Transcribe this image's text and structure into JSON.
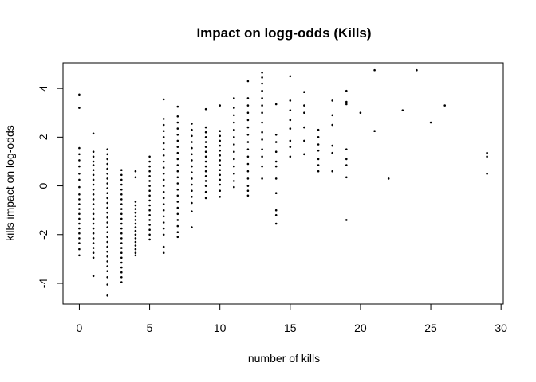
{
  "chart_data": {
    "type": "scatter",
    "title": "Impact on logg-odds (Kills)",
    "xlabel": "number of kills",
    "ylabel": "kills impact on log-odds",
    "xlim": [
      -1.16,
      30.16
    ],
    "ylim": [
      -4.85,
      5.05
    ],
    "x_ticks": [
      0,
      5,
      10,
      15,
      20,
      25,
      30
    ],
    "y_ticks": [
      -4,
      -2,
      0,
      2,
      4
    ],
    "x_tick_labels": [
      "0",
      "5",
      "10",
      "15",
      "20",
      "25",
      "30"
    ],
    "y_tick_labels": [
      "-4",
      "-2",
      "0",
      "2",
      "4"
    ],
    "grid": false,
    "legend": "none",
    "marker_color": "#000000",
    "columns": [
      {
        "x": 0,
        "y": [
          3.75,
          3.2,
          1.55,
          1.3,
          1.05,
          0.8,
          0.5,
          0.25,
          -0.05,
          -0.35,
          -0.55,
          -0.75,
          -0.95,
          -1.15,
          -1.35,
          -1.55,
          -1.75,
          -1.95,
          -2.15,
          -2.35,
          -2.6,
          -2.85
        ]
      },
      {
        "x": 1,
        "y": [
          2.15,
          1.4,
          1.2,
          1.0,
          0.85,
          0.65,
          0.45,
          0.25,
          0.05,
          -0.15,
          -0.35,
          -0.55,
          -0.75,
          -0.95,
          -1.15,
          -1.35,
          -1.55,
          -1.75,
          -1.95,
          -2.15,
          -2.35,
          -2.55,
          -2.75,
          -2.95,
          -3.7
        ]
      },
      {
        "x": 2,
        "y": [
          1.5,
          1.3,
          1.1,
          0.9,
          0.7,
          0.5,
          0.3,
          0.1,
          -0.1,
          -0.3,
          -0.5,
          -0.7,
          -0.9,
          -1.1,
          -1.3,
          -1.5,
          -1.7,
          -1.9,
          -2.1,
          -2.3,
          -2.5,
          -2.7,
          -2.9,
          -3.1,
          -3.3,
          -3.5,
          -3.75,
          -4.05,
          -4.5
        ]
      },
      {
        "x": 3,
        "y": [
          0.65,
          0.45,
          0.25,
          0.05,
          -0.15,
          -0.35,
          -0.55,
          -0.75,
          -0.95,
          -1.15,
          -1.35,
          -1.55,
          -1.75,
          -1.95,
          -2.15,
          -2.35,
          -2.55,
          -2.75,
          -2.95,
          -3.15,
          -3.35,
          -3.55,
          -3.75,
          -3.95
        ]
      },
      {
        "x": 4,
        "y": [
          0.6,
          0.35,
          -0.65,
          -0.8,
          -0.95,
          -1.1,
          -1.25,
          -1.4,
          -1.55,
          -1.7,
          -1.85,
          -2.0,
          -2.15,
          -2.3,
          -2.45,
          -2.6,
          -2.75,
          -2.85
        ]
      },
      {
        "x": 5,
        "y": [
          1.2,
          1.0,
          0.8,
          0.6,
          0.4,
          0.2,
          0.0,
          -0.2,
          -0.4,
          -0.6,
          -0.8,
          -1.0,
          -1.2,
          -1.4,
          -1.6,
          -1.8,
          -2.0,
          -2.2
        ]
      },
      {
        "x": 6,
        "y": [
          3.55,
          2.75,
          2.5,
          2.25,
          2.0,
          1.75,
          1.5,
          1.25,
          1.0,
          0.75,
          0.5,
          0.25,
          0.0,
          -0.25,
          -0.5,
          -0.75,
          -1.0,
          -1.25,
          -1.5,
          -1.75,
          -2.0,
          -2.5,
          -2.75
        ]
      },
      {
        "x": 7,
        "y": [
          3.25,
          2.85,
          2.6,
          2.35,
          2.1,
          1.85,
          1.6,
          1.35,
          1.1,
          0.85,
          0.6,
          0.35,
          0.1,
          -0.15,
          -0.4,
          -0.65,
          -0.9,
          -1.15,
          -1.4,
          -1.65,
          -1.9,
          -2.1
        ]
      },
      {
        "x": 8,
        "y": [
          2.55,
          2.3,
          2.05,
          1.8,
          1.55,
          1.3,
          1.05,
          0.8,
          0.55,
          0.3,
          0.05,
          -0.2,
          -0.45,
          -0.7,
          -1.05,
          -1.7
        ]
      },
      {
        "x": 9,
        "y": [
          3.15,
          2.4,
          2.2,
          2.0,
          1.8,
          1.6,
          1.4,
          1.2,
          1.0,
          0.8,
          0.6,
          0.4,
          0.2,
          0.0,
          -0.25,
          -0.5
        ]
      },
      {
        "x": 10,
        "y": [
          3.3,
          2.25,
          2.05,
          1.85,
          1.65,
          1.45,
          1.25,
          1.05,
          0.85,
          0.65,
          0.45,
          0.25,
          0.05,
          -0.2,
          -0.45
        ]
      },
      {
        "x": 11,
        "y": [
          3.6,
          3.2,
          2.9,
          2.6,
          2.3,
          2.0,
          1.7,
          1.4,
          1.1,
          0.8,
          0.5,
          0.2,
          -0.05
        ]
      },
      {
        "x": 12,
        "y": [
          4.3,
          3.6,
          3.3,
          3.0,
          2.7,
          2.4,
          2.1,
          1.8,
          1.5,
          1.2,
          0.9,
          0.6,
          0.3,
          0.0,
          -0.2,
          -0.4
        ]
      },
      {
        "x": 13,
        "y": [
          4.65,
          4.45,
          4.2,
          3.9,
          3.6,
          3.3,
          3.0,
          2.6,
          2.2,
          1.9,
          1.5,
          1.2,
          0.8,
          0.3
        ]
      },
      {
        "x": 14,
        "y": [
          3.35,
          2.1,
          1.8,
          1.4,
          1.0,
          0.8,
          0.3,
          -0.3,
          -1.0,
          -1.2,
          -1.55
        ]
      },
      {
        "x": 15,
        "y": [
          4.5,
          3.5,
          3.1,
          2.7,
          2.35,
          1.85,
          1.6,
          1.2
        ]
      },
      {
        "x": 16,
        "y": [
          3.85,
          3.3,
          3.0,
          2.4,
          1.85,
          1.3
        ]
      },
      {
        "x": 17,
        "y": [
          2.3,
          2.0,
          1.7,
          1.45,
          1.1,
          0.85,
          0.6
        ]
      },
      {
        "x": 18,
        "y": [
          3.5,
          2.9,
          2.5,
          1.65,
          1.35,
          0.6
        ]
      },
      {
        "x": 19,
        "y": [
          3.9,
          3.45,
          3.35,
          1.5,
          1.1,
          0.85,
          0.35,
          -1.4
        ]
      },
      {
        "x": 20,
        "y": [
          3.0
        ]
      },
      {
        "x": 21,
        "y": [
          4.75,
          2.25
        ]
      },
      {
        "x": 22,
        "y": [
          0.3
        ]
      },
      {
        "x": 23,
        "y": [
          3.1
        ]
      },
      {
        "x": 24,
        "y": [
          4.75
        ]
      },
      {
        "x": 25,
        "y": [
          2.6
        ]
      },
      {
        "x": 26,
        "y": [
          3.3
        ]
      },
      {
        "x": 29,
        "y": [
          1.35,
          1.2,
          0.5
        ]
      }
    ]
  }
}
